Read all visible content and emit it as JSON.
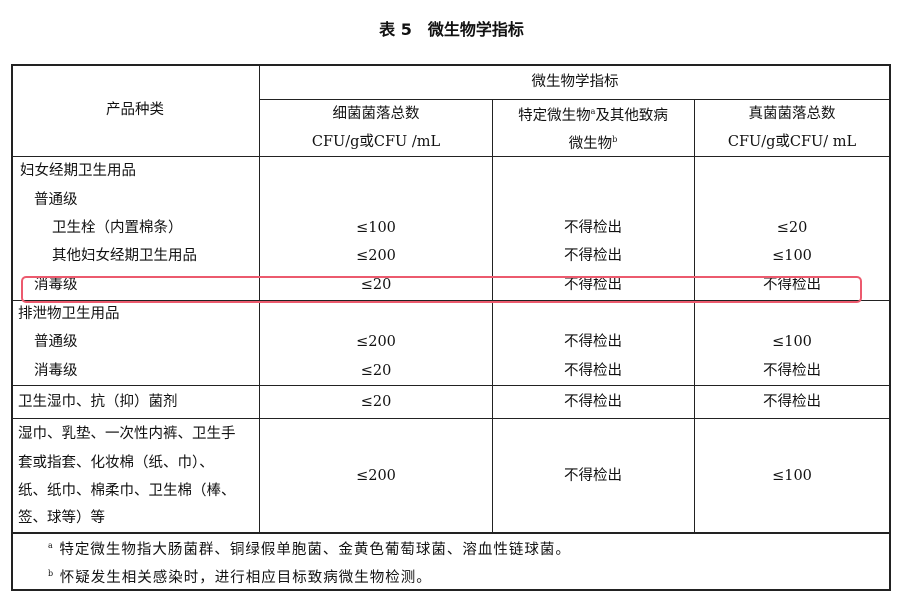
{
  "title": "表 5　微生物学指标",
  "header": {
    "product_type": "产品种类",
    "group": "微生物学指标",
    "col1": [
      "细菌菌落总数",
      "CFU/g或CFU /mL"
    ],
    "col2": [
      "特定微生物",
      "a",
      "及其他致病",
      "微生物",
      "b"
    ],
    "col3": [
      "真菌菌落总数",
      "CFU/g或CFU/ mL"
    ]
  },
  "groups": [
    {
      "name": "妇女经期卫生用品",
      "rows": [
        {
          "label": "普通级"
        },
        {
          "label": "卫生栓（内置棉条）",
          "bacteria": "≤100",
          "pathogens": "不得检出",
          "fungi": "≤20"
        },
        {
          "label": "其他妇女经期卫生用品",
          "bacteria": "≤200",
          "pathogens": "不得检出",
          "fungi": "≤100"
        },
        {
          "label": "消毒级",
          "bacteria": "≤20",
          "pathogens": "不得检出",
          "fungi": "不得检出"
        }
      ]
    },
    {
      "name": "排泄物卫生用品",
      "rows": [
        {
          "label": "普通级",
          "bacteria": "≤200",
          "pathogens": "不得检出",
          "fungi": "≤100"
        },
        {
          "label": "消毒级",
          "bacteria": "≤20",
          "pathogens": "不得检出",
          "fungi": "不得检出"
        }
      ]
    },
    {
      "name": "卫生湿巾、抗（抑）菌剂",
      "bacteria": "≤20",
      "pathogens": "不得检出",
      "fungi": "不得检出"
    },
    {
      "name_lines": [
        "湿巾、乳垫、一次性内裤、卫生手",
        "套或指套、化妆棉（纸、巾）、",
        "纸、纸巾、棉柔巾、卫生棉（棒、",
        "签、球等）等"
      ],
      "bacteria": "≤200",
      "pathogens": "不得检出",
      "fungi": "≤100"
    }
  ],
  "footnotes": [
    {
      "mark": "a",
      "text": "特定微生物指大肠菌群、铜绿假单胞菌、金黄色葡萄球菌、溶血性链球菌。"
    },
    {
      "mark": "b",
      "text": "怀疑发生相关感染时，进行相应目标致病微生物检测。"
    }
  ],
  "highlight_color": "#ec5a6e"
}
